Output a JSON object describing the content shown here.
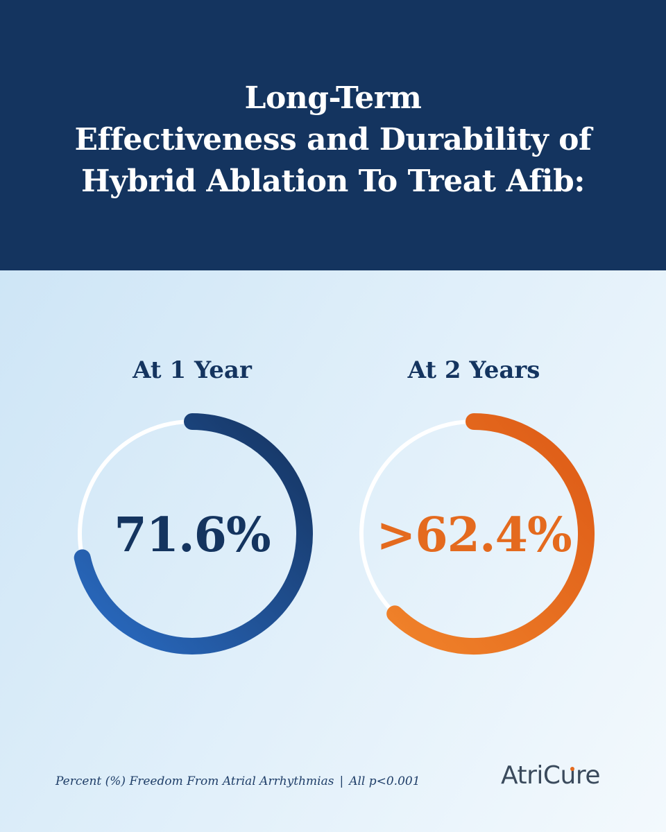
{
  "header": {
    "title_lines": [
      "Long-Term",
      "Effectiveness and Durability of",
      "Hybrid Ablation To Treat Afib:"
    ]
  },
  "chart_data": [
    {
      "type": "pie",
      "title": "At 1 Year",
      "value": 71.6,
      "value_label": "71.6%",
      "unit": "%",
      "max": 100,
      "colors": [
        "#2a6cc4",
        "#15335f"
      ],
      "track_color": "#ffffff"
    },
    {
      "type": "pie",
      "title": "At 2 Years",
      "value": 62.4,
      "value_label": ">62.4%",
      "unit": "%",
      "max": 100,
      "colors": [
        "#f0822a",
        "#dd5a16"
      ],
      "track_color": "#ffffff"
    }
  ],
  "footer": {
    "note_left": "Percent (%) Freedom From Atrial Arrhythmias",
    "separator": "|",
    "note_right": "All p<0.001",
    "logo_text": "AtriCure",
    "logo_icon": "atricure-logo",
    "logo_accent": "#e46a1e"
  },
  "colors": {
    "header_bg": "#14345f",
    "text_dark": "#14345f",
    "accent_orange": "#e46a1e"
  }
}
